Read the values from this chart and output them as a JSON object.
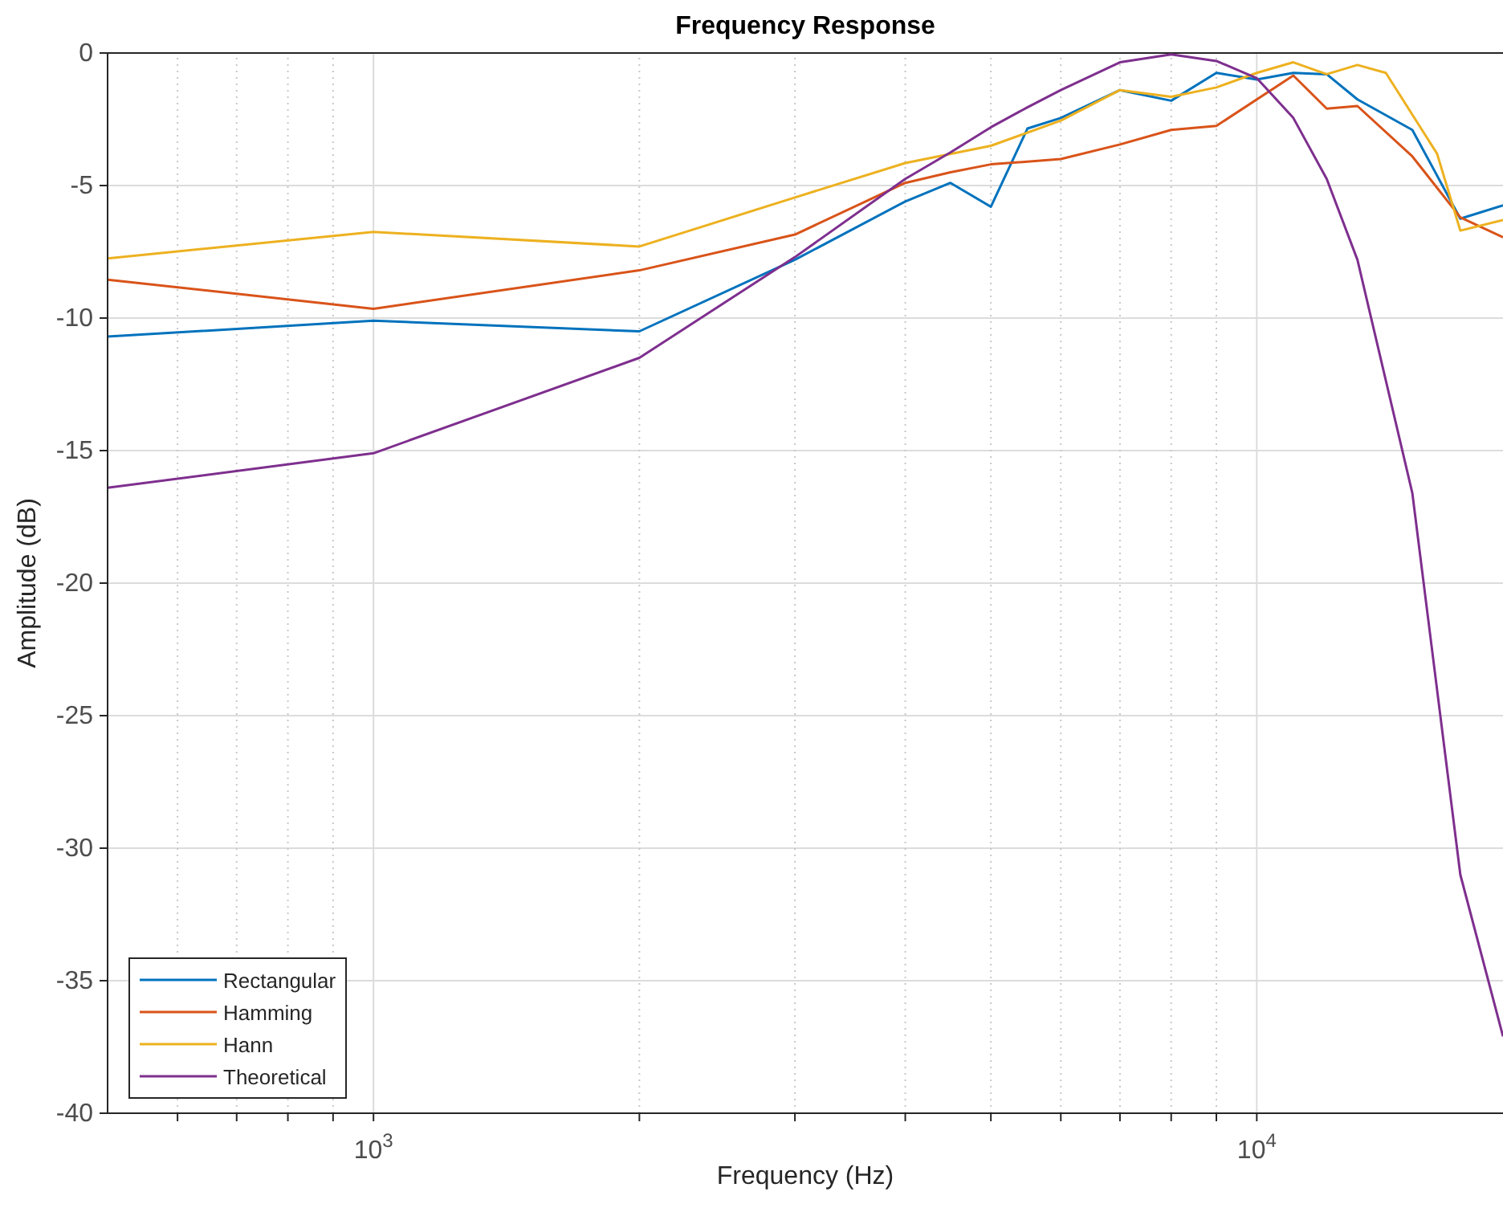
{
  "chart_data": {
    "type": "line",
    "title": "Frequency Response",
    "xlabel": "Frequency (Hz)",
    "ylabel": "Amplitude (dB)",
    "log": "x",
    "xlim": [
      500,
      19000
    ],
    "ylim": [
      -40,
      0
    ],
    "xticks": [
      {
        "value": 600,
        "label": null
      },
      {
        "value": 700,
        "label": null
      },
      {
        "value": 800,
        "label": null
      },
      {
        "value": 900,
        "label": null
      },
      {
        "value": 1000,
        "label": "10$^{3}$"
      },
      {
        "value": 2000,
        "label": null
      },
      {
        "value": 3000,
        "label": null
      },
      {
        "value": 4000,
        "label": null
      },
      {
        "value": 5000,
        "label": null
      },
      {
        "value": 6000,
        "label": null
      },
      {
        "value": 7000,
        "label": null
      },
      {
        "value": 8000,
        "label": null
      },
      {
        "value": 9000,
        "label": null
      },
      {
        "value": 10000,
        "label": "10$^{4}$"
      }
    ],
    "yticks": [
      -40,
      -35,
      -30,
      -25,
      -20,
      -15,
      -10,
      -5,
      0
    ],
    "grid": true,
    "legend": "bottom left",
    "marker": "none",
    "line_style": "solid",
    "series": [
      {
        "name": "Rectangular",
        "color": "#0072bd",
        "x": [
          500,
          1000,
          2000,
          3000,
          4000,
          4500,
          5000,
          5500,
          6000,
          7000,
          8000,
          9000,
          10000,
          11000,
          12000,
          13000,
          15000,
          17000,
          19000
        ],
        "values": [
          -10.7,
          -10.1,
          -10.5,
          -7.8,
          -5.6,
          -4.9,
          -5.8,
          -2.85,
          -2.45,
          -1.4,
          -1.8,
          -0.75,
          -1.0,
          -0.75,
          -0.8,
          -1.75,
          -2.9,
          -6.25,
          -5.75
        ]
      },
      {
        "name": "Hamming",
        "color": "#d95319",
        "x": [
          500,
          1000,
          2000,
          3000,
          4000,
          4500,
          5000,
          6000,
          7000,
          8000,
          9000,
          11000,
          12000,
          13000,
          15000,
          17000,
          19000
        ],
        "values": [
          -8.55,
          -9.65,
          -8.2,
          -6.85,
          -4.9,
          -4.5,
          -4.2,
          -4.0,
          -3.45,
          -2.9,
          -2.75,
          -0.85,
          -2.1,
          -2.0,
          -3.9,
          -6.2,
          -6.95
        ]
      },
      {
        "name": "Hann",
        "color": "#edb120",
        "x": [
          500,
          1000,
          2000,
          3000,
          4000,
          5000,
          6000,
          7000,
          8000,
          9000,
          10000,
          11000,
          12000,
          13000,
          14000,
          16000,
          17000,
          19000
        ],
        "values": [
          -7.75,
          -6.75,
          -7.3,
          -5.45,
          -4.15,
          -3.5,
          -2.55,
          -1.4,
          -1.65,
          -1.3,
          -0.75,
          -0.35,
          -0.8,
          -0.45,
          -0.75,
          -3.8,
          -6.7,
          -6.3
        ]
      },
      {
        "name": "Theoretical",
        "color": "#7e2f8e",
        "x": [
          500,
          1000,
          2000,
          3000,
          4000,
          4500,
          5000,
          5500,
          6000,
          7000,
          8000,
          9000,
          10000,
          11000,
          12000,
          13000,
          15000,
          17000,
          19000
        ],
        "values": [
          -16.4,
          -15.1,
          -11.5,
          -7.7,
          -4.75,
          -3.75,
          -2.8,
          -2.05,
          -1.4,
          -0.35,
          -0.05,
          -0.3,
          -0.95,
          -2.45,
          -4.75,
          -7.8,
          -16.6,
          -31.0,
          -37.1
        ]
      }
    ]
  }
}
